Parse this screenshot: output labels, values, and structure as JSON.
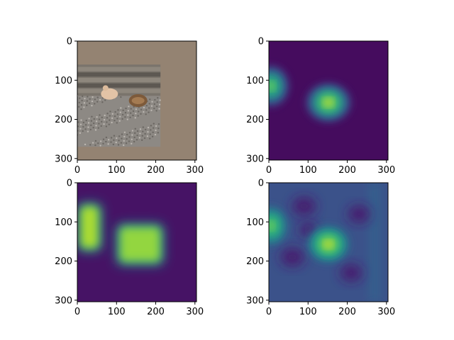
{
  "chart_data": [
    {
      "type": "image",
      "subplot": "top-left",
      "content": "photo: two birds (one pale, one brown/striped) on gravel in front of a wooden fence, padded with grey-brown border",
      "pad_color": "#948372",
      "xlim": [
        0,
        304
      ],
      "ylim": [
        304,
        0
      ],
      "xticks": [
        0,
        100,
        200,
        300
      ],
      "yticks": [
        0,
        100,
        200,
        300
      ],
      "grid": false,
      "legend": null
    },
    {
      "type": "heatmap",
      "subplot": "top-right",
      "colormap": "viridis",
      "xlim": [
        0,
        304
      ],
      "ylim": [
        304,
        0
      ],
      "xticks": [
        0,
        100,
        200,
        300
      ],
      "yticks": [
        0,
        100,
        200,
        300
      ],
      "background_value": 0.03,
      "blobs": [
        {
          "cx": 5,
          "cy": 115,
          "sx": 28,
          "sy": 32,
          "peak": 0.82
        },
        {
          "cx": 152,
          "cy": 157,
          "sx": 35,
          "sy": 30,
          "peak": 0.95
        }
      ],
      "grid": false,
      "legend": null
    },
    {
      "type": "heatmap",
      "subplot": "bottom-left",
      "colormap": "viridis",
      "xlim": [
        0,
        304
      ],
      "ylim": [
        304,
        0
      ],
      "xticks": [
        0,
        100,
        200,
        300
      ],
      "yticks": [
        0,
        100,
        200,
        300
      ],
      "background_value": 0.05,
      "regions": [
        {
          "x0": 0,
          "x1": 62,
          "y0": 52,
          "y1": 175,
          "peak": 0.97
        },
        {
          "x0": 100,
          "x1": 220,
          "y0": 105,
          "y1": 210,
          "peak": 0.93
        }
      ],
      "grid": false,
      "legend": null
    },
    {
      "type": "heatmap",
      "subplot": "bottom-right",
      "colormap": "viridis",
      "xlim": [
        0,
        304
      ],
      "ylim": [
        304,
        0
      ],
      "xticks": [
        0,
        100,
        200,
        300
      ],
      "yticks": [
        0,
        100,
        200,
        300
      ],
      "background_value": 0.25,
      "blobs": [
        {
          "cx": 5,
          "cy": 110,
          "sx": 25,
          "sy": 30,
          "peak": 0.82
        },
        {
          "cx": 152,
          "cy": 157,
          "sx": 32,
          "sy": 28,
          "peak": 0.95
        }
      ],
      "dark_spots": [
        {
          "cx": 90,
          "cy": 60,
          "s": 30
        },
        {
          "cx": 230,
          "cy": 80,
          "s": 28
        },
        {
          "cx": 60,
          "cy": 190,
          "s": 30
        },
        {
          "cx": 210,
          "cy": 230,
          "s": 28
        },
        {
          "cx": 100,
          "cy": 120,
          "s": 22
        }
      ],
      "right_band": {
        "x0": 255,
        "x1": 285,
        "value": 0.3
      },
      "grid": false,
      "legend": null
    }
  ]
}
